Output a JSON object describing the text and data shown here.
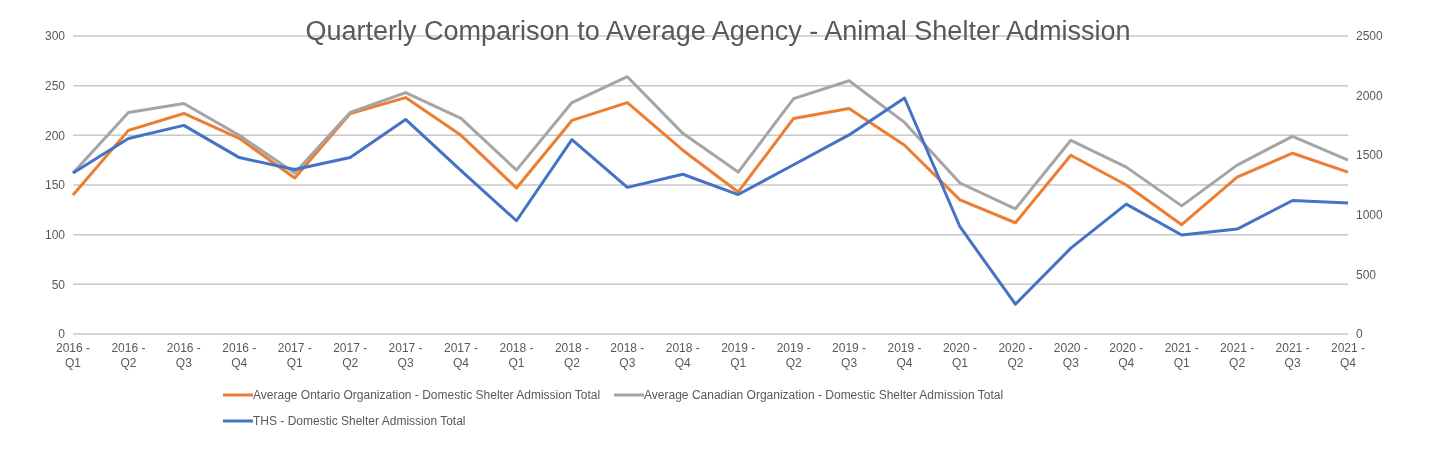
{
  "chart_data": {
    "type": "line",
    "title": "Quarterly Comparison to Average Agency - Animal Shelter Admission",
    "categories": [
      "2016 - Q1",
      "2016 - Q2",
      "2016 - Q3",
      "2016 - Q4",
      "2017 - Q1",
      "2017 - Q2",
      "2017 - Q3",
      "2017 - Q4",
      "2018 - Q1",
      "2018 - Q2",
      "2018 - Q3",
      "2018 - Q4",
      "2019 - Q1",
      "2019 - Q2",
      "2019 - Q3",
      "2019 - Q4",
      "2020 - Q1",
      "2020 - Q2",
      "2020 - Q3",
      "2020 - Q4",
      "2021 - Q1",
      "2021 - Q2",
      "2021 - Q3",
      "2021 - Q4"
    ],
    "series": [
      {
        "name": "Average Ontario Organization - Domestic Shelter Admission Total",
        "color": "#ed7d31",
        "values": [
          140,
          205,
          222,
          197,
          157,
          222,
          238,
          200,
          147,
          215,
          233,
          185,
          143,
          217,
          227,
          190,
          135,
          112,
          180,
          150,
          110,
          158,
          182,
          163
        ]
      },
      {
        "name": "Average Canadian Organization - Domestic Shelter Admission Total",
        "color": "#a5a5a5",
        "values": [
          162,
          223,
          232,
          200,
          162,
          223,
          243,
          217,
          165,
          233,
          259,
          202,
          163,
          237,
          255,
          213,
          152,
          126,
          195,
          168,
          129,
          170,
          199,
          175
        ]
      },
      {
        "name": "THS - Domestic Shelter Admission Total",
        "color": "#4472c4",
        "axis": "y2",
        "values": [
          1350,
          1640,
          1750,
          1480,
          1380,
          1480,
          1800,
          1370,
          950,
          1630,
          1230,
          1340,
          1170,
          1420,
          1670,
          1980,
          900,
          250,
          720,
          1090,
          830,
          880,
          1120,
          1100
        ]
      }
    ],
    "ylim": [
      0,
      300
    ],
    "yticks": [
      0,
      50,
      100,
      150,
      200,
      250,
      300
    ],
    "y2lim": [
      0,
      2500
    ],
    "y2ticks": [
      0,
      500,
      1000,
      1500,
      2000,
      2500
    ],
    "grid": "y",
    "legend": "bottom",
    "marker": "none",
    "line_style": "solid"
  }
}
